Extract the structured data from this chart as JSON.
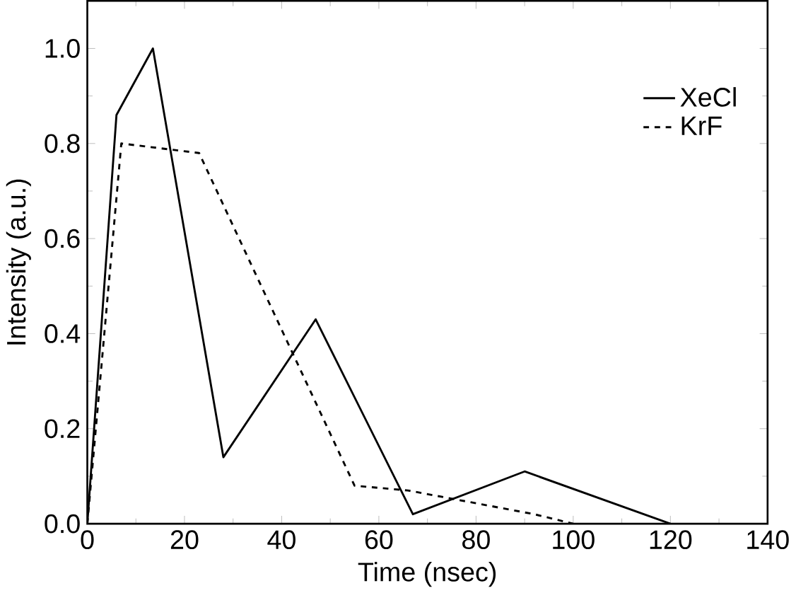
{
  "chart_data": {
    "type": "line",
    "xlabel": "Time (nsec)",
    "ylabel": "Intensity (a.u.)",
    "xlim": [
      0,
      140
    ],
    "xticks": [
      0,
      20,
      40,
      60,
      80,
      100,
      120,
      140
    ],
    "ylim": [
      0,
      1.1
    ],
    "yticks": [
      {
        "value": 0,
        "label": "0.0"
      },
      0.2,
      0.4,
      0.6,
      0.8,
      {
        "value": 1,
        "label": "1.0"
      }
    ],
    "grid": false,
    "legend": "top right",
    "marker": "none",
    "series": [
      {
        "name": "XeCl",
        "color": "#000000",
        "line_style": "solid",
        "x": [
          0,
          6,
          13.5,
          28,
          47,
          67,
          90,
          120
        ],
        "values": [
          0,
          0.86,
          1.0,
          0.14,
          0.43,
          0.02,
          0.11,
          0.0
        ]
      },
      {
        "name": "KrF",
        "color": "#000000",
        "line_style": "dashed",
        "x": [
          0,
          7,
          23,
          55,
          66,
          92,
          100
        ],
        "values": [
          0,
          0.8,
          0.78,
          0.08,
          0.07,
          0.02,
          0.0
        ]
      }
    ]
  }
}
